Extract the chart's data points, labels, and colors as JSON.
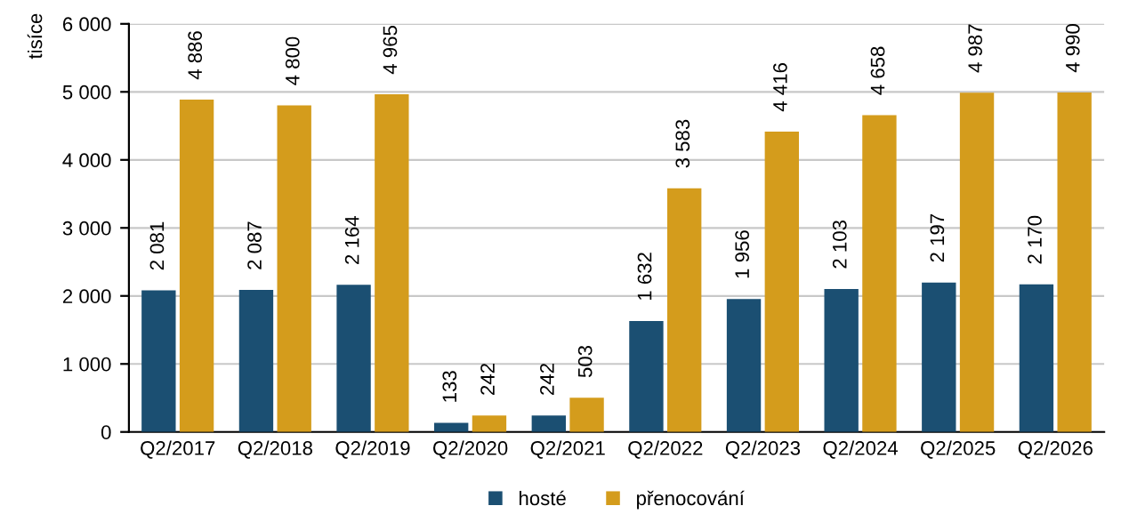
{
  "chart_data": {
    "type": "bar",
    "ylabel": "tisíce",
    "categories": [
      "Q2/2017",
      "Q2/2018",
      "Q2/2019",
      "Q2/2020",
      "Q2/2021",
      "Q2/2022",
      "Q2/2023",
      "Q2/2024",
      "Q2/2025",
      "Q2/2026"
    ],
    "series": [
      {
        "name": "hosté",
        "color": "#1b4f72",
        "values": [
          2081,
          2087,
          2164,
          133,
          242,
          1632,
          1956,
          2103,
          2197,
          2170
        ],
        "value_labels": [
          "2 081",
          "2 087",
          "2 164",
          "133",
          "242",
          "1 632",
          "1 956",
          "2 103",
          "2 197",
          "2 170"
        ]
      },
      {
        "name": "přenocování",
        "color": "#d49c1c",
        "values": [
          4886,
          4800,
          4965,
          242,
          503,
          3583,
          4416,
          4658,
          4987,
          4990
        ],
        "value_labels": [
          "4 886",
          "4 800",
          "4 965",
          "242",
          "503",
          "3 583",
          "4 416",
          "4 658",
          "4 987",
          "4 990"
        ]
      }
    ],
    "ylim": [
      0,
      6000
    ],
    "yticks": [
      {
        "value": 0,
        "label": "0"
      },
      {
        "value": 1000,
        "label": "1 000"
      },
      {
        "value": 2000,
        "label": "2 000"
      },
      {
        "value": 3000,
        "label": "3 000"
      },
      {
        "value": 4000,
        "label": "4 000"
      },
      {
        "value": 5000,
        "label": "5 000"
      },
      {
        "value": 6000,
        "label": "6 000"
      }
    ],
    "grid": "y",
    "legend": "bottom"
  }
}
